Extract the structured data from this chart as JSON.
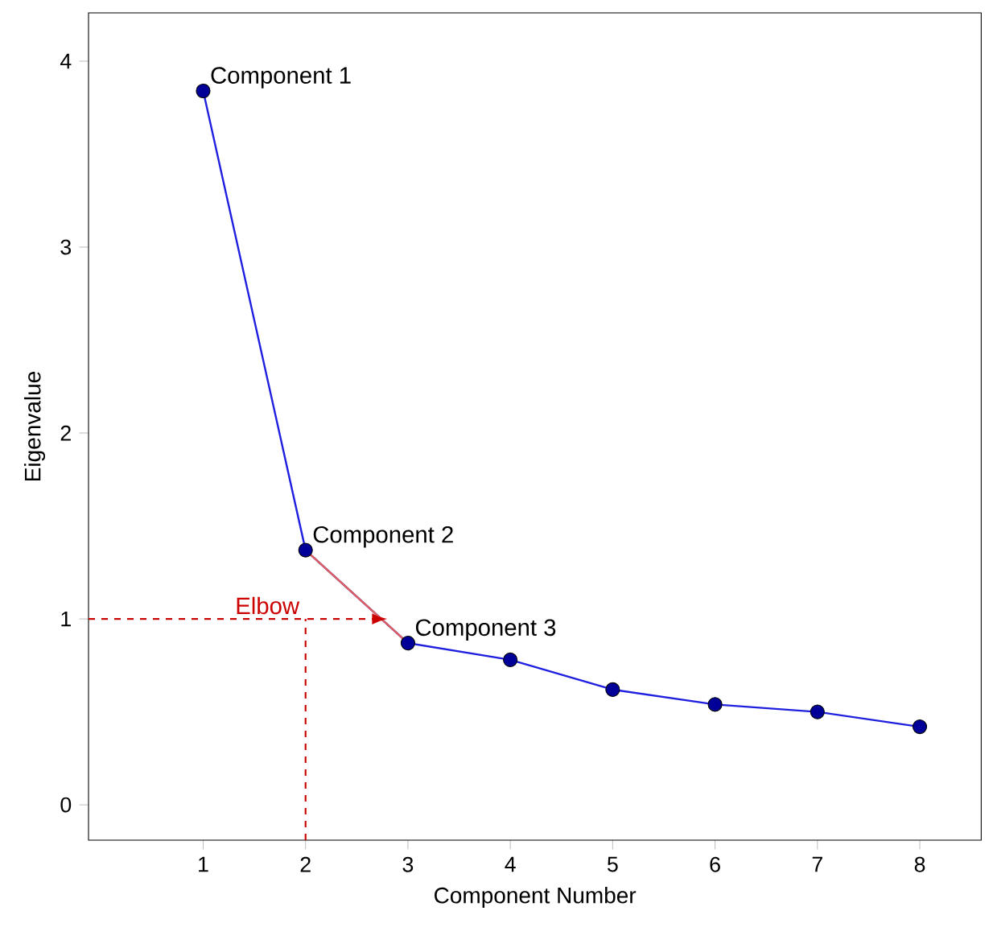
{
  "chart_data": {
    "type": "line",
    "xlabel": "Component Number",
    "ylabel": "Eigenvalue",
    "xlim": [
      -0.12,
      8.6
    ],
    "ylim": [
      -0.19,
      4.26
    ],
    "xticks": [
      1,
      2,
      3,
      4,
      5,
      6,
      7,
      8
    ],
    "yticks": [
      0,
      1,
      2,
      3,
      4
    ],
    "grid": false,
    "series": [
      {
        "color": "#1f1fe0",
        "marker": "circle",
        "x": [
          1,
          2,
          3,
          4,
          5,
          6,
          7,
          8
        ],
        "values": [
          3.84,
          1.37,
          0.87,
          0.78,
          0.62,
          0.54,
          0.5,
          0.42
        ]
      },
      {
        "color": "#e06060",
        "marker": "none",
        "x": [
          2,
          3
        ],
        "values": [
          1.37,
          0.87
        ]
      }
    ],
    "annotations": [
      {
        "text": "Component 1",
        "x": 1,
        "y": 3.84
      },
      {
        "text": "Component 2",
        "x": 2,
        "y": 1.37
      },
      {
        "text": "Component 3",
        "x": 3,
        "y": 0.87
      },
      "Elbow"
    ]
  }
}
